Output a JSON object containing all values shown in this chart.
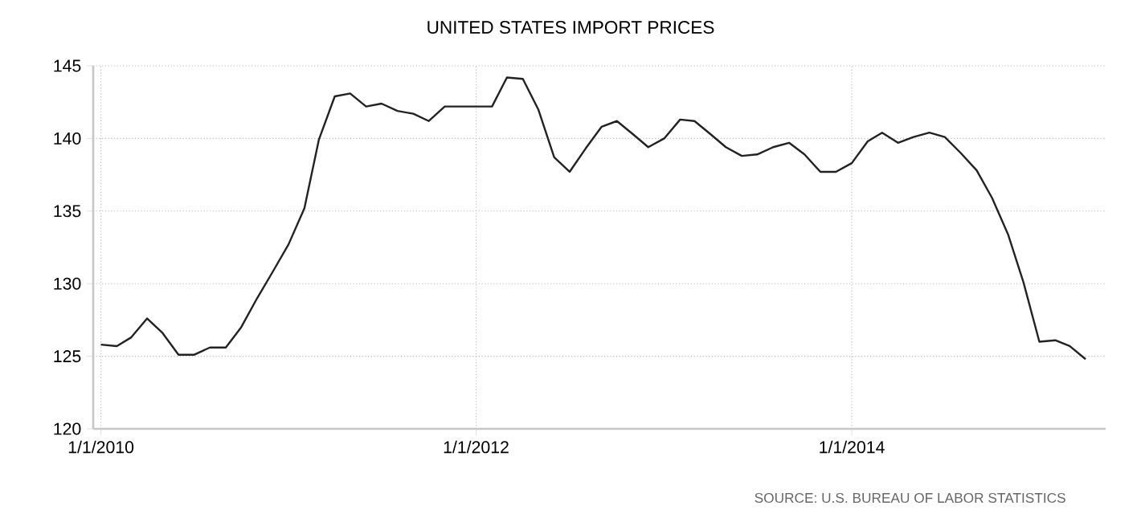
{
  "chart_data": {
    "type": "line",
    "title": "UNITED STATES IMPORT PRICES",
    "x": [
      "2010-01",
      "2010-02",
      "2010-03",
      "2010-04",
      "2010-05",
      "2010-06",
      "2010-07",
      "2010-08",
      "2010-09",
      "2010-10",
      "2010-11",
      "2010-12",
      "2011-01",
      "2011-02",
      "2011-03",
      "2011-04",
      "2011-05",
      "2011-06",
      "2011-07",
      "2011-08",
      "2011-09",
      "2011-10",
      "2011-11",
      "2011-12",
      "2012-01",
      "2012-02",
      "2012-03",
      "2012-04",
      "2012-05",
      "2012-06",
      "2012-07",
      "2012-08",
      "2012-09",
      "2012-10",
      "2012-11",
      "2012-12",
      "2013-01",
      "2013-02",
      "2013-03",
      "2013-04",
      "2013-05",
      "2013-06",
      "2013-07",
      "2013-08",
      "2013-09",
      "2013-10",
      "2013-11",
      "2013-12",
      "2014-01",
      "2014-02",
      "2014-03",
      "2014-04",
      "2014-05",
      "2014-06",
      "2014-07",
      "2014-08",
      "2014-09",
      "2014-10",
      "2014-11",
      "2014-12",
      "2015-01",
      "2015-02",
      "2015-03",
      "2015-04"
    ],
    "series": [
      {
        "color": "#222222",
        "values": [
          125.8,
          125.7,
          126.3,
          127.6,
          126.6,
          125.1,
          125.1,
          125.6,
          125.6,
          127.0,
          129.0,
          130.8,
          132.7,
          135.2,
          139.9,
          142.9,
          143.1,
          142.2,
          142.4,
          141.9,
          141.7,
          141.2,
          142.2,
          142.2,
          142.2,
          142.2,
          144.2,
          144.1,
          142.0,
          138.7,
          137.7,
          139.3,
          140.8,
          141.2,
          140.3,
          139.4,
          140.0,
          141.3,
          141.2,
          140.3,
          139.4,
          138.8,
          138.9,
          139.4,
          139.7,
          138.9,
          137.7,
          137.7,
          138.3,
          139.8,
          140.4,
          139.7,
          140.1,
          140.4,
          140.1,
          139.0,
          137.8,
          135.9,
          133.4,
          130.1,
          126.0,
          126.1,
          125.7,
          124.8
        ]
      }
    ],
    "xlim": [
      "2009-12-17",
      "2015-05-10"
    ],
    "xticks": [
      {
        "value": "2010-01-01",
        "label": "1/1/2010"
      },
      {
        "value": "2012-01-01",
        "label": "1/1/2012"
      },
      {
        "value": "2014-01-01",
        "label": "1/1/2014"
      }
    ],
    "ylim": [
      120,
      145
    ],
    "yticks": [
      120,
      125,
      130,
      135,
      140,
      145
    ],
    "grid": true,
    "marker": "none",
    "line_style": "solid",
    "annotations": [
      "SOURCE: U.S. BUREAU OF LABOR STATISTICS"
    ]
  }
}
